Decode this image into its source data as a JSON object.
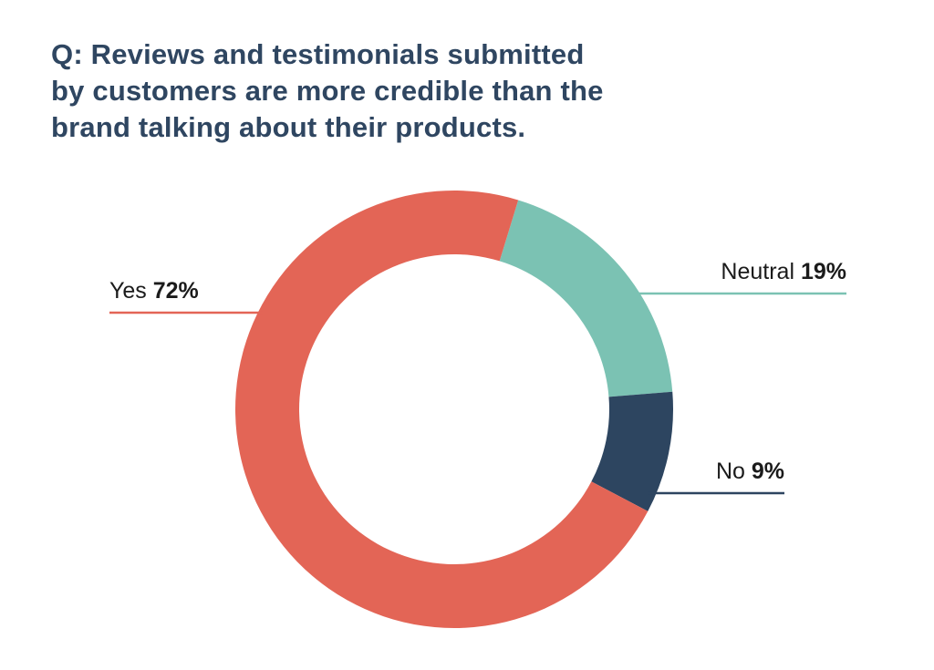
{
  "chart_data": {
    "type": "pie",
    "style": "donut",
    "title_lines": [
      "Q: Reviews and testimonials submitted",
      "by customers are more credible than the",
      "brand talking about their products."
    ],
    "slices": [
      {
        "label": "Yes",
        "value": 72,
        "value_label": "72%",
        "color": "#e36556"
      },
      {
        "label": "Neutral",
        "value": 19,
        "value_label": "19%",
        "color": "#7bc2b3"
      },
      {
        "label": "No",
        "value": 9,
        "value_label": "9%",
        "color": "#2d4560"
      }
    ],
    "legend": "none",
    "grid": false
  }
}
